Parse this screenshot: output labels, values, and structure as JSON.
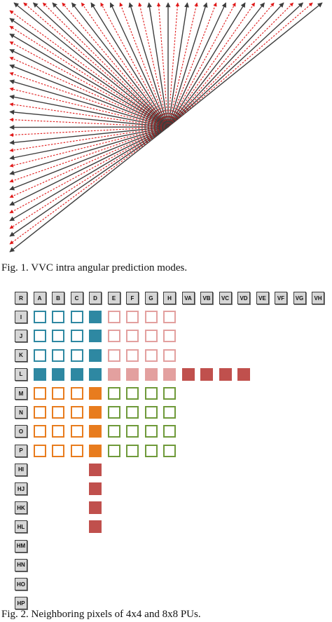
{
  "figure1": {
    "caption": "Fig. 1. VVC intra angular prediction modes.",
    "colors": {
      "solid_arrow": "#3d3d3d",
      "dashed_arrow": "#e01818"
    }
  },
  "figure2": {
    "caption": "Fig. 2.  Neighboring pixels of 4x4 and 8x8 PUs.",
    "top_labels": [
      "R",
      "A",
      "B",
      "C",
      "D",
      "E",
      "F",
      "G",
      "H",
      "VA",
      "VB",
      "VC",
      "VD",
      "VE",
      "VF",
      "VG",
      "VH"
    ],
    "left_labels": [
      "I",
      "J",
      "K",
      "L",
      "M",
      "N",
      "O",
      "P",
      "HI",
      "HJ",
      "HK",
      "HL",
      "HM",
      "HN",
      "HO",
      "HP"
    ],
    "colors": {
      "teal": "#2e88a2",
      "pink": "#e3a09f",
      "orange": "#e87c1e",
      "green": "#6f9a3a",
      "red": "#c0504d",
      "label_fill": "#d6d6d6"
    }
  }
}
